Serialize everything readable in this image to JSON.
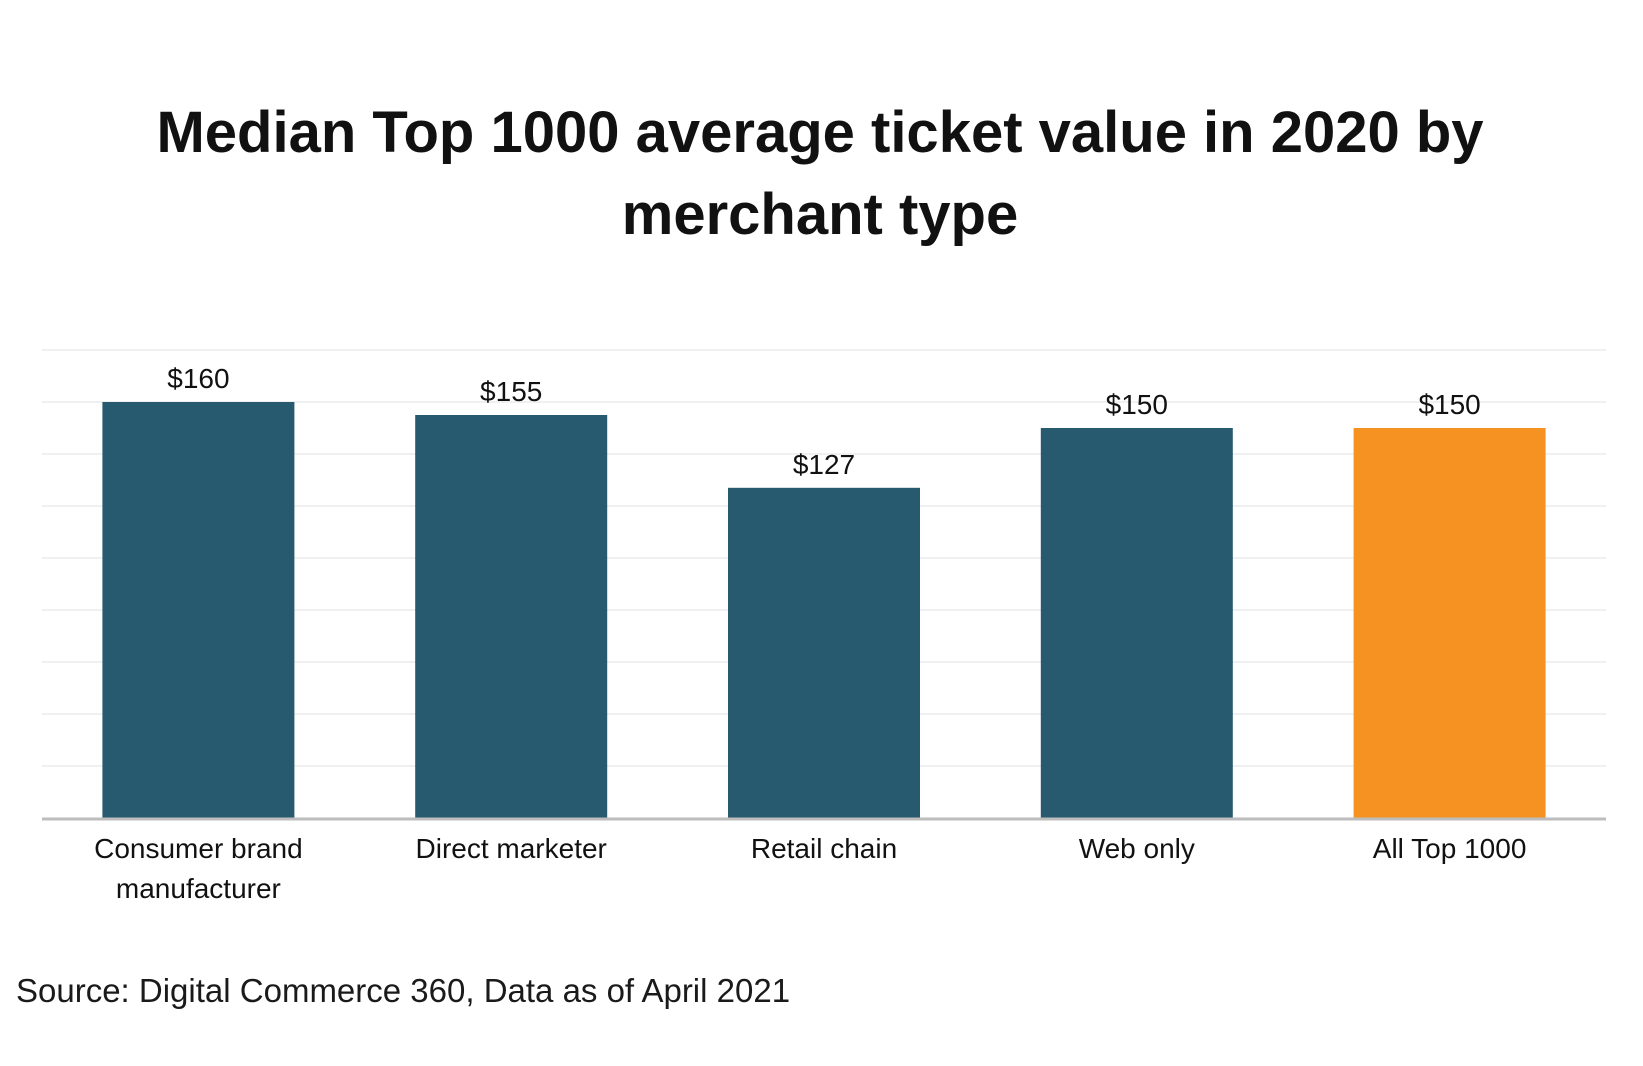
{
  "chart_data": {
    "type": "bar",
    "title": "Median Top 1000 average ticket value in 2020 by merchant type",
    "categories": [
      [
        "Consumer brand",
        "manufacturer"
      ],
      [
        "Direct marketer"
      ],
      [
        "Retail chain"
      ],
      [
        "Web only"
      ],
      [
        "All Top 1000"
      ]
    ],
    "values": [
      160,
      155,
      127,
      150,
      150
    ],
    "value_labels": [
      "$160",
      "$155",
      "$127",
      "$150",
      "$150"
    ],
    "bar_colors": [
      "#27596f",
      "#27596f",
      "#27596f",
      "#27596f",
      "#f59222"
    ],
    "ylim": [
      0,
      180
    ],
    "grid": true,
    "gridline_step": 20,
    "xlabel": "",
    "ylabel": ""
  },
  "source": "Source: Digital Commerce 360, Data as of April 2021"
}
